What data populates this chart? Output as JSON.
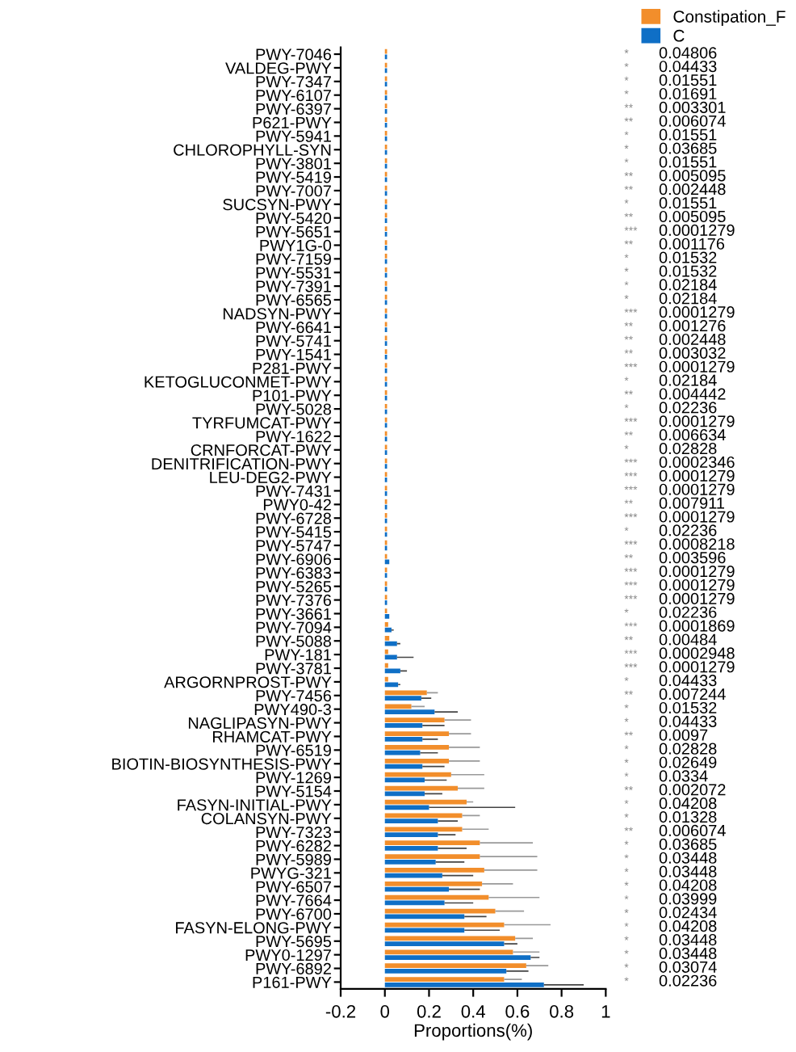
{
  "chart_data": {
    "type": "bar",
    "orientation": "horizontal",
    "xlabel": "Proportions(%)",
    "legend": "top right",
    "grid": false,
    "xlim": [
      -0.2,
      1
    ],
    "xticks": [
      -0.2,
      0,
      0.2,
      0.4,
      0.6,
      0.8,
      1
    ],
    "categories": [
      "PWY-7046",
      "VALDEG-PWY",
      "PWY-7347",
      "PWY-6107",
      "PWY-6397",
      "P621-PWY",
      "PWY-5941",
      "CHLOROPHYLL-SYN",
      "PWY-3801",
      "PWY-5419",
      "PWY-7007",
      "SUCSYN-PWY",
      "PWY-5420",
      "PWY-5651",
      "PWY1G-0",
      "PWY-7159",
      "PWY-5531",
      "PWY-7391",
      "PWY-6565",
      "NADSYN-PWY",
      "PWY-6641",
      "PWY-5741",
      "PWY-1541",
      "P281-PWY",
      "KETOGLUCONMET-PWY",
      "P101-PWY",
      "PWY-5028",
      "TYRFUMCAT-PWY",
      "PWY-1622",
      "CRNFORCAT-PWY",
      "DENITRIFICATION-PWY",
      "LEU-DEG2-PWY",
      "PWY-7431",
      "PWY0-42",
      "PWY-6728",
      "PWY-5415",
      "PWY-5747",
      "PWY-6906",
      "PWY-6383",
      "PWY-5265",
      "PWY-7376",
      "PWY-3661",
      "PWY-7094",
      "PWY-5088",
      "PWY-181",
      "PWY-3781",
      "ARGORNPROST-PWY",
      "PWY-7456",
      "PWY490-3",
      "NAGLIPASYN-PWY",
      "RHAMCAT-PWY",
      "PWY-6519",
      "BIOTIN-BIOSYNTHESIS-PWY",
      "PWY-1269",
      "PWY-5154",
      "FASYN-INITIAL-PWY",
      "COLANSYN-PWY",
      "PWY-7323",
      "PWY-6282",
      "PWY-5989",
      "PWYG-321",
      "PWY-6507",
      "PWY-7664",
      "PWY-6700",
      "FASYN-ELONG-PWY",
      "PWY-5695",
      "PWY0-1297",
      "PWY-6892",
      "P161-PWY"
    ],
    "series": [
      {
        "name": "Constipation_F",
        "color": "#f28e2b",
        "values": [
          0.01,
          0.01,
          0.01,
          0.01,
          0.01,
          0.01,
          0.01,
          0.01,
          0.01,
          0.01,
          0.01,
          0.01,
          0.01,
          0.01,
          0.01,
          0.01,
          0.01,
          0.01,
          0.01,
          0.01,
          0.01,
          0.01,
          0.01,
          0.01,
          0.01,
          0.01,
          0.01,
          0.01,
          0.01,
          0.01,
          0.01,
          0.01,
          0.01,
          0.01,
          0.01,
          0.01,
          0.01,
          0.01,
          0.01,
          0.01,
          0.01,
          0.01,
          0.015,
          0.02,
          0.015,
          0.015,
          0.015,
          0.19,
          0.12,
          0.27,
          0.29,
          0.29,
          0.29,
          0.3,
          0.33,
          0.37,
          0.35,
          0.35,
          0.43,
          0.43,
          0.45,
          0.44,
          0.47,
          0.5,
          0.54,
          0.59,
          0.58,
          0.64,
          0.54
        ],
        "errors": [
          null,
          null,
          null,
          null,
          null,
          null,
          null,
          null,
          null,
          null,
          null,
          null,
          null,
          null,
          null,
          null,
          null,
          null,
          null,
          null,
          null,
          null,
          null,
          null,
          null,
          null,
          null,
          null,
          null,
          null,
          null,
          null,
          null,
          null,
          null,
          null,
          null,
          null,
          null,
          null,
          null,
          null,
          null,
          null,
          null,
          null,
          null,
          [
            0.19,
            0.24
          ],
          [
            0.12,
            0.18
          ],
          [
            0.27,
            0.39
          ],
          [
            0.29,
            0.39
          ],
          [
            0.29,
            0.43
          ],
          [
            0.29,
            0.43
          ],
          [
            0.3,
            0.45
          ],
          [
            0.33,
            0.45
          ],
          [
            0.37,
            0.4
          ],
          [
            0.35,
            0.43
          ],
          [
            0.35,
            0.47
          ],
          [
            0.43,
            0.67
          ],
          [
            0.43,
            0.69
          ],
          [
            0.45,
            0.69
          ],
          [
            0.44,
            0.58
          ],
          [
            0.47,
            0.7
          ],
          [
            0.5,
            0.63
          ],
          [
            0.54,
            0.75
          ],
          [
            0.59,
            0.67
          ],
          [
            0.58,
            0.7
          ],
          [
            0.64,
            0.74
          ],
          [
            0.54,
            0.62
          ]
        ]
      },
      {
        "name": "C",
        "color": "#0f6fc6",
        "values": [
          0.01,
          0.01,
          0.01,
          0.01,
          0.01,
          0.01,
          0.01,
          0.01,
          0.01,
          0.01,
          0.01,
          0.01,
          0.01,
          0.01,
          0.01,
          0.01,
          0.01,
          0.01,
          0.01,
          0.01,
          0.01,
          0.01,
          0.01,
          0.01,
          0.01,
          0.01,
          0.01,
          0.01,
          0.01,
          0.01,
          0.01,
          0.01,
          0.01,
          0.01,
          0.01,
          0.01,
          0.01,
          0.02,
          0.01,
          0.01,
          0.01,
          0.02,
          0.03,
          0.055,
          0.055,
          0.07,
          0.06,
          0.165,
          0.225,
          0.17,
          0.17,
          0.16,
          0.17,
          0.18,
          0.18,
          0.2,
          0.24,
          0.24,
          0.24,
          0.23,
          0.26,
          0.29,
          0.27,
          0.36,
          0.36,
          0.54,
          0.66,
          0.55,
          0.72
        ],
        "errors": [
          null,
          null,
          null,
          null,
          null,
          null,
          null,
          null,
          null,
          null,
          null,
          null,
          null,
          null,
          null,
          null,
          null,
          null,
          null,
          null,
          null,
          null,
          null,
          null,
          null,
          null,
          null,
          null,
          null,
          null,
          null,
          null,
          null,
          null,
          null,
          null,
          null,
          null,
          null,
          null,
          null,
          null,
          [
            0.03,
            0.04
          ],
          [
            0.055,
            0.07
          ],
          [
            0.055,
            0.13
          ],
          [
            0.07,
            0.1
          ],
          [
            0.06,
            0.07
          ],
          [
            0.165,
            0.21
          ],
          [
            0.225,
            0.33
          ],
          [
            0.17,
            0.27
          ],
          [
            0.17,
            0.24
          ],
          [
            0.16,
            0.24
          ],
          [
            0.17,
            0.27
          ],
          [
            0.18,
            0.28
          ],
          [
            0.18,
            0.26
          ],
          [
            0.2,
            0.59
          ],
          [
            0.24,
            0.33
          ],
          [
            0.24,
            0.32
          ],
          [
            0.24,
            0.37
          ],
          [
            0.23,
            0.36
          ],
          [
            0.26,
            0.4
          ],
          [
            0.29,
            0.43
          ],
          [
            0.27,
            0.4
          ],
          [
            0.36,
            0.46
          ],
          [
            0.36,
            0.52
          ],
          [
            0.54,
            0.6
          ],
          [
            0.66,
            0.7
          ],
          [
            0.55,
            0.65
          ],
          [
            0.72,
            0.9
          ]
        ]
      }
    ],
    "annotations": [
      "* 0.04806",
      "* 0.04433",
      "* 0.01551",
      "* 0.01691",
      "** 0.003301",
      "** 0.006074",
      "* 0.01551",
      "* 0.03685",
      "* 0.01551",
      "** 0.005095",
      "** 0.002448",
      "* 0.01551",
      "** 0.005095",
      "*** 0.0001279",
      "** 0.001176",
      "* 0.01532",
      "* 0.01532",
      "* 0.02184",
      "* 0.02184",
      "*** 0.0001279",
      "** 0.001276",
      "** 0.002448",
      "** 0.003032",
      "*** 0.0001279",
      "* 0.02184",
      "** 0.004442",
      "* 0.02236",
      "*** 0.0001279",
      "** 0.006634",
      "* 0.02828",
      "*** 0.0002346",
      "*** 0.0001279",
      "*** 0.0001279",
      "** 0.007911",
      "*** 0.0001279",
      "* 0.02236",
      "*** 0.0008218",
      "** 0.003596",
      "*** 0.0001279",
      "*** 0.0001279",
      "*** 0.0001279",
      "* 0.02236",
      "*** 0.0001869",
      "** 0.00484",
      "*** 0.0002948",
      "*** 0.0001279",
      "* 0.04433",
      "** 0.007244",
      "* 0.01532",
      "* 0.04433",
      "** 0.0097",
      "* 0.02828",
      "* 0.02649",
      "* 0.0334",
      "** 0.002072",
      "* 0.04208",
      "* 0.01328",
      "** 0.006074",
      "* 0.03685",
      "* 0.03448",
      "* 0.03448",
      "* 0.04208",
      "* 0.03999",
      "* 0.02434",
      "* 0.04208",
      "* 0.03448",
      "* 0.03448",
      "* 0.03074",
      "* 0.02236"
    ]
  }
}
